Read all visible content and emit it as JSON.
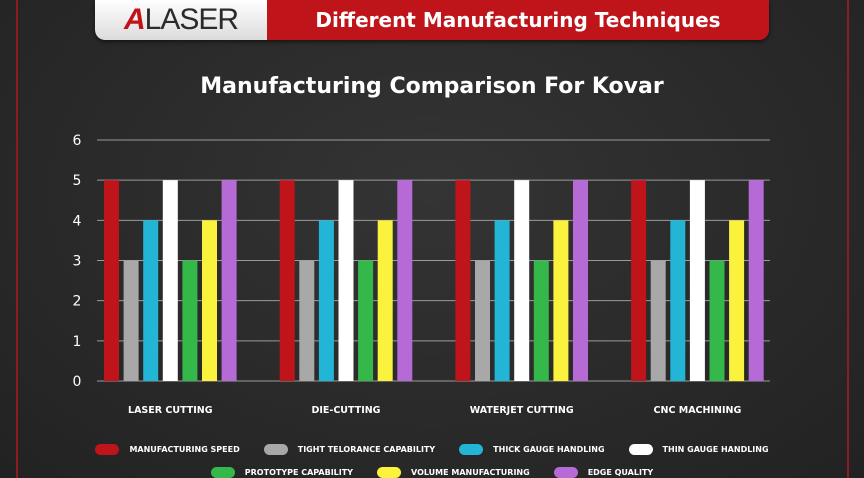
{
  "banner": {
    "logo_accent": "A",
    "logo_text": "LASER",
    "title": "Different Manufacturing Techniques",
    "brand_color": "#c0141b"
  },
  "chart_data": {
    "type": "bar",
    "title": "Manufacturing Comparison For Kovar",
    "xlabel": "",
    "ylabel": "",
    "ylim": [
      0,
      6
    ],
    "yticks": [
      "0",
      "1",
      "2",
      "3",
      "4",
      "5",
      "6"
    ],
    "grid": true,
    "legend_position": "bottom",
    "categories": [
      "LASER CUTTING",
      "DIE-CUTTING",
      "WATERJET CUTTING",
      "CNC MACHINING"
    ],
    "series": [
      {
        "name": "MANUFACTURING SPEED",
        "color": "#c0141b",
        "values": [
          5,
          5,
          5,
          5
        ]
      },
      {
        "name": "TIGHT TELORANCE CAPABILITY",
        "color": "#a8a8a8",
        "values": [
          3,
          3,
          3,
          3
        ]
      },
      {
        "name": "THICK GAUGE HANDLING",
        "color": "#22b5d6",
        "values": [
          4,
          4,
          4,
          4
        ]
      },
      {
        "name": "THIN GAUGE HANDLING",
        "color": "#ffffff",
        "values": [
          5,
          5,
          5,
          5
        ]
      },
      {
        "name": "PROTOTYPE CAPABILITY",
        "color": "#34b84a",
        "values": [
          3,
          3,
          3,
          3
        ]
      },
      {
        "name": "VOLUME MANUFACTURING",
        "color": "#fbf23e",
        "values": [
          4,
          4,
          4,
          4
        ]
      },
      {
        "name": "EDGE QUALITY",
        "color": "#b56ad6",
        "values": [
          5,
          5,
          5,
          5
        ]
      }
    ]
  }
}
